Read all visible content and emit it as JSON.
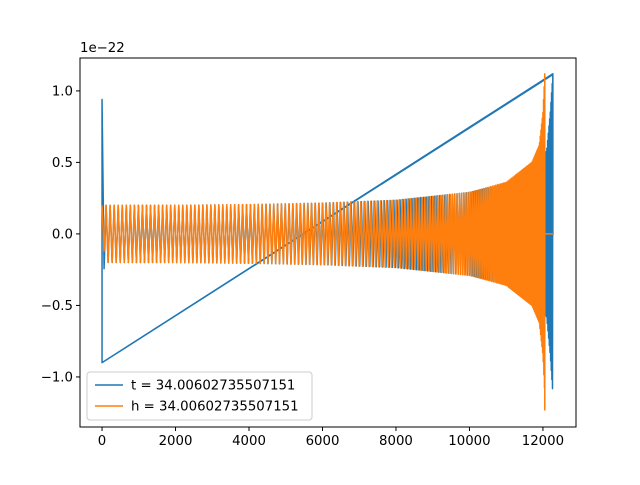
{
  "chart_data": {
    "type": "line",
    "title": "",
    "xlabel": "",
    "ylabel": "",
    "y_scale_label": "1e−22",
    "xlim": [
      -600,
      12900
    ],
    "ylim": [
      -1.35,
      1.23
    ],
    "x_ticks": [
      0,
      2000,
      4000,
      6000,
      8000,
      10000,
      12000
    ],
    "x_tick_labels": [
      "0",
      "2000",
      "4000",
      "6000",
      "8000",
      "10000",
      "12000"
    ],
    "y_ticks": [
      -1.0,
      -0.5,
      0.0,
      0.5,
      1.0
    ],
    "y_tick_labels": [
      "−1.0",
      "−0.5",
      "0.0",
      "0.5",
      "1.0"
    ],
    "grid": false,
    "legend_position": "lower-left",
    "series": [
      {
        "name": "t = 34.00602735507151",
        "color": "#1f77b4",
        "envelope": [
          [
            0,
            0.94
          ],
          [
            20,
            0.55
          ],
          [
            60,
            0.2
          ],
          [
            2000,
            0.2
          ],
          [
            4000,
            0.205
          ],
          [
            6000,
            0.215
          ],
          [
            8000,
            0.235
          ],
          [
            10000,
            0.29
          ],
          [
            11000,
            0.35
          ],
          [
            11800,
            0.45
          ],
          [
            12100,
            0.58
          ],
          [
            12200,
            0.85
          ],
          [
            12270,
            1.12
          ]
        ],
        "lower_extremes": [
          [
            0,
            -0.9
          ],
          [
            12270,
            -1.23
          ]
        ],
        "tail": [
          [
            12270,
            0.0
          ],
          [
            12300,
            0.0
          ]
        ]
      },
      {
        "name": "h = 34.00602735507151",
        "color": "#ff7f0e",
        "envelope": [
          [
            0,
            0.2
          ],
          [
            200,
            0.2
          ],
          [
            2000,
            0.2
          ],
          [
            4000,
            0.205
          ],
          [
            6000,
            0.215
          ],
          [
            8000,
            0.235
          ],
          [
            10000,
            0.29
          ],
          [
            11000,
            0.36
          ],
          [
            11700,
            0.5
          ],
          [
            11900,
            0.62
          ],
          [
            12000,
            0.85
          ],
          [
            12050,
            1.12
          ]
        ],
        "lower_extremes": [
          [
            12050,
            -1.23
          ]
        ],
        "tail": [
          [
            12050,
            0.0
          ],
          [
            12300,
            0.0
          ]
        ]
      }
    ]
  }
}
